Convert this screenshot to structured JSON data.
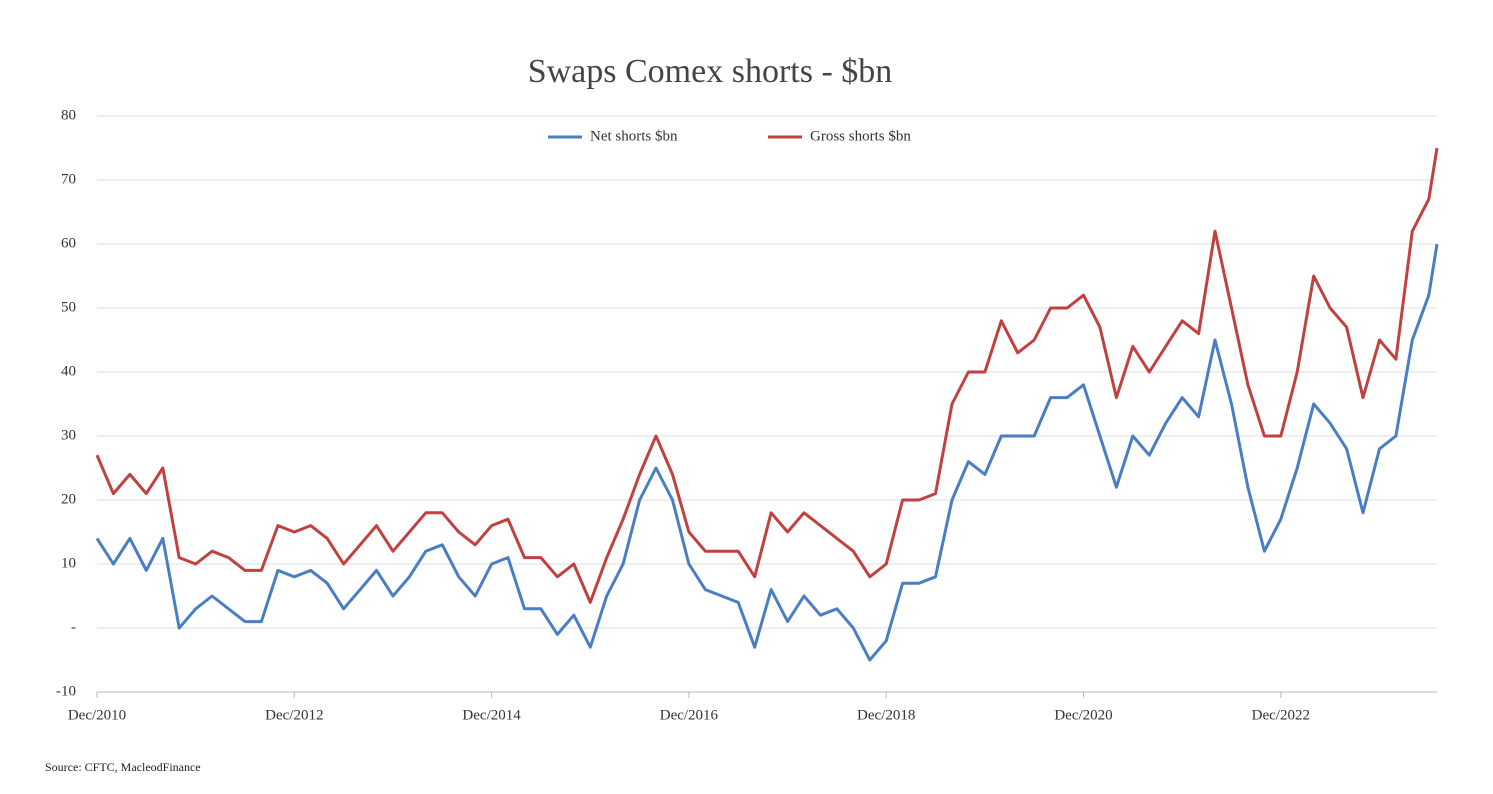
{
  "chart_data": {
    "type": "line",
    "title": "Swaps Comex shorts - $bn",
    "source": "Source: CFTC, MacleodFinance",
    "x": [
      "2010-12",
      "2011-02",
      "2011-04",
      "2011-06",
      "2011-08",
      "2011-10",
      "2011-12",
      "2012-02",
      "2012-04",
      "2012-06",
      "2012-08",
      "2012-10",
      "2012-12",
      "2013-02",
      "2013-04",
      "2013-06",
      "2013-08",
      "2013-10",
      "2013-12",
      "2014-02",
      "2014-04",
      "2014-06",
      "2014-08",
      "2014-10",
      "2014-12",
      "2015-02",
      "2015-04",
      "2015-06",
      "2015-08",
      "2015-10",
      "2015-12",
      "2016-02",
      "2016-04",
      "2016-06",
      "2016-08",
      "2016-10",
      "2016-12",
      "2017-02",
      "2017-04",
      "2017-06",
      "2017-08",
      "2017-10",
      "2017-12",
      "2018-02",
      "2018-04",
      "2018-06",
      "2018-08",
      "2018-10",
      "2018-12",
      "2019-02",
      "2019-04",
      "2019-06",
      "2019-08",
      "2019-10",
      "2019-12",
      "2020-02",
      "2020-04",
      "2020-06",
      "2020-08",
      "2020-10",
      "2020-12",
      "2021-02",
      "2021-04",
      "2021-06",
      "2021-08",
      "2021-10",
      "2021-12",
      "2022-02",
      "2022-04",
      "2022-06",
      "2022-08",
      "2022-10",
      "2022-12",
      "2023-02",
      "2023-04",
      "2023-06",
      "2023-08",
      "2023-10",
      "2023-12",
      "2024-02",
      "2024-04",
      "2024-06",
      "2024-07"
    ],
    "series": [
      {
        "name": "Net shorts $bn",
        "color": "#4a7ec2",
        "values": [
          14,
          10,
          14,
          9,
          14,
          0,
          3,
          5,
          3,
          1,
          1,
          9,
          8,
          9,
          7,
          3,
          6,
          9,
          5,
          8,
          12,
          13,
          8,
          5,
          10,
          11,
          3,
          3,
          -1,
          2,
          -3,
          5,
          10,
          20,
          25,
          20,
          10,
          6,
          5,
          4,
          -3,
          6,
          1,
          5,
          2,
          3,
          0,
          -5,
          -2,
          7,
          7,
          8,
          20,
          26,
          24,
          30,
          30,
          30,
          36,
          36,
          38,
          30,
          22,
          30,
          27,
          32,
          36,
          33,
          45,
          35,
          22,
          12,
          17,
          25,
          35,
          32,
          28,
          18,
          28,
          30,
          45,
          52,
          60
        ]
      },
      {
        "name": "Gross shorts $bn",
        "color": "#c0413f",
        "values": [
          27,
          21,
          24,
          21,
          25,
          11,
          10,
          12,
          11,
          9,
          9,
          16,
          15,
          16,
          14,
          10,
          13,
          16,
          12,
          15,
          18,
          18,
          15,
          13,
          16,
          17,
          11,
          11,
          8,
          10,
          4,
          11,
          17,
          24,
          30,
          24,
          15,
          12,
          12,
          12,
          8,
          18,
          15,
          18,
          16,
          14,
          12,
          8,
          10,
          20,
          20,
          21,
          35,
          40,
          40,
          48,
          43,
          45,
          50,
          50,
          52,
          47,
          36,
          44,
          40,
          44,
          48,
          46,
          62,
          50,
          38,
          30,
          30,
          40,
          55,
          50,
          47,
          36,
          45,
          42,
          62,
          67,
          75
        ]
      }
    ],
    "xlim": [
      "2010-12",
      "2024-07"
    ],
    "xticks": [
      {
        "value": "2010-12",
        "label": "Dec/2010"
      },
      {
        "value": "2012-12",
        "label": "Dec/2012"
      },
      {
        "value": "2014-12",
        "label": "Dec/2014"
      },
      {
        "value": "2016-12",
        "label": "Dec/2016"
      },
      {
        "value": "2018-12",
        "label": "Dec/2018"
      },
      {
        "value": "2020-12",
        "label": "Dec/2020"
      },
      {
        "value": "2022-12",
        "label": "Dec/2022"
      }
    ],
    "ylim": [
      -10,
      80
    ],
    "yticks": [
      -10,
      {
        "value": 0,
        "label": "-"
      },
      10,
      20,
      30,
      40,
      50,
      60,
      70,
      80
    ],
    "grid": true
  }
}
